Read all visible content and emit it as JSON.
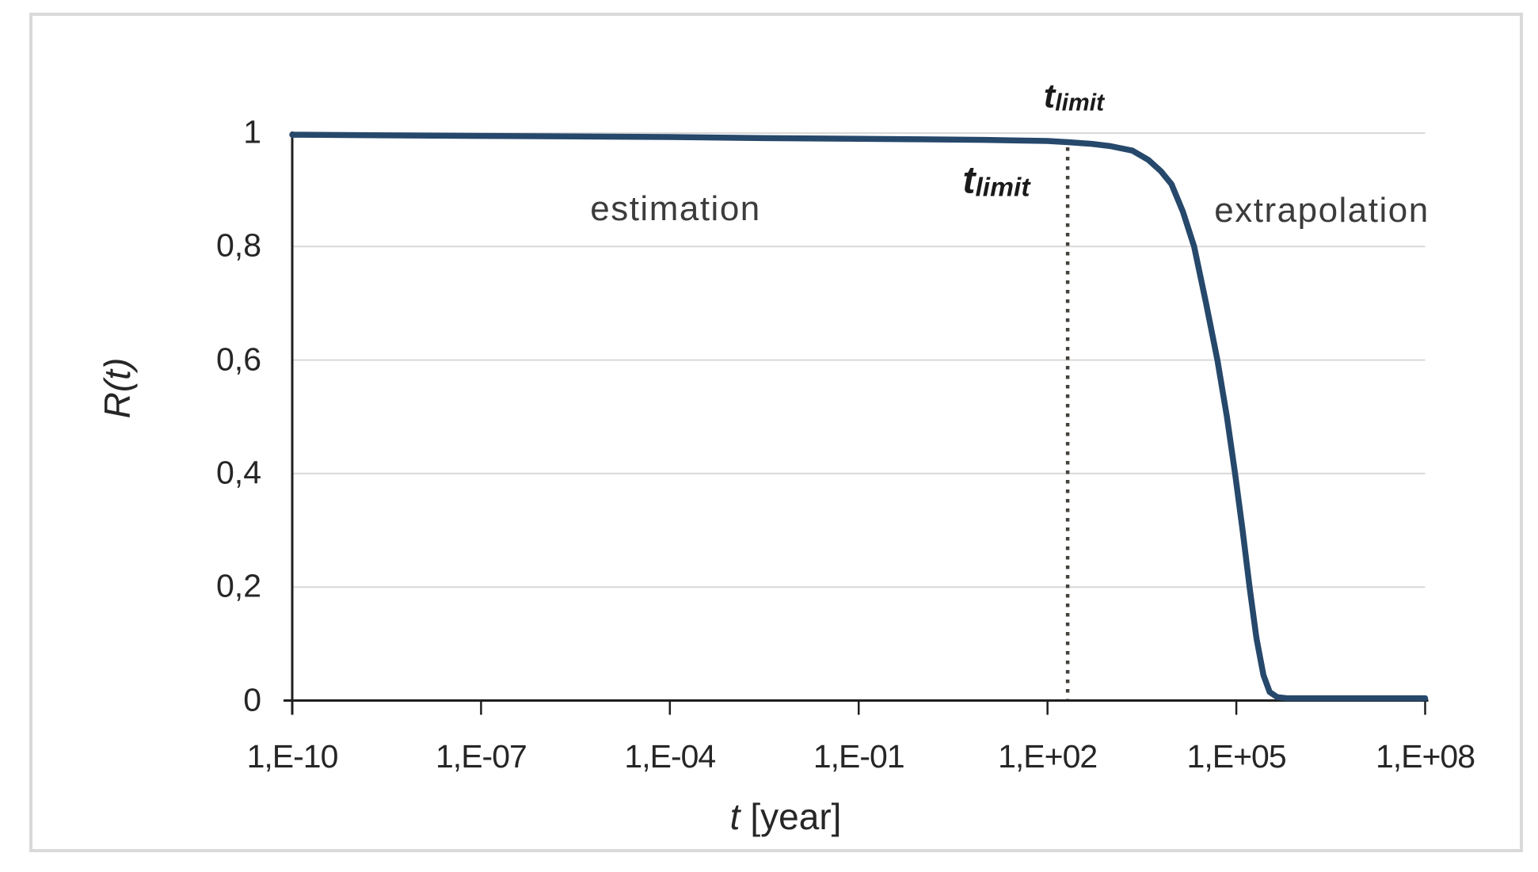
{
  "figure": {
    "background": "#ffffff",
    "border_color": "#d9d9d9"
  },
  "chart_data": {
    "type": "line",
    "title": "",
    "xlabel_symbol": "t",
    "xlabel_unit": "[year]",
    "ylabel": "R(t)",
    "x_scale": "log10",
    "xlim_log": [
      -10,
      8
    ],
    "ylim": [
      0,
      1
    ],
    "grid": "horizontal",
    "legend": "none",
    "x_ticks": [
      {
        "label": "1,E-10",
        "exp": -10
      },
      {
        "label": "1,E-07",
        "exp": -7
      },
      {
        "label": "1,E-04",
        "exp": -4
      },
      {
        "label": "1,E-01",
        "exp": -1
      },
      {
        "label": "1,E+02",
        "exp": 2
      },
      {
        "label": "1,E+05",
        "exp": 5
      },
      {
        "label": "1,E+08",
        "exp": 8
      }
    ],
    "y_ticks": [
      {
        "label": "1",
        "value": 1
      },
      {
        "label": "0,8",
        "value": 0.8
      },
      {
        "label": "0,6",
        "value": 0.6
      },
      {
        "label": "0,4",
        "value": 0.4
      },
      {
        "label": "0,2",
        "value": 0.2
      },
      {
        "label": "0",
        "value": 0
      }
    ],
    "series": [
      {
        "name": "R(t)",
        "color": "#26486B",
        "points_log10t_R": [
          [
            -10,
            0.997
          ],
          [
            -8.5,
            0.996
          ],
          [
            -7,
            0.995
          ],
          [
            -5.5,
            0.994
          ],
          [
            -4,
            0.993
          ],
          [
            -2.5,
            0.991
          ],
          [
            -1,
            0.99
          ],
          [
            0,
            0.989
          ],
          [
            1,
            0.988
          ],
          [
            2,
            0.986
          ],
          [
            2.32,
            0.984
          ],
          [
            2.7,
            0.981
          ],
          [
            3.0,
            0.977
          ],
          [
            3.35,
            0.969
          ],
          [
            3.6,
            0.953
          ],
          [
            3.8,
            0.933
          ],
          [
            3.97,
            0.91
          ],
          [
            4.15,
            0.862
          ],
          [
            4.33,
            0.8
          ],
          [
            4.52,
            0.7
          ],
          [
            4.7,
            0.6
          ],
          [
            4.85,
            0.5
          ],
          [
            4.98,
            0.4
          ],
          [
            5.1,
            0.3
          ],
          [
            5.21,
            0.2
          ],
          [
            5.32,
            0.11
          ],
          [
            5.43,
            0.045
          ],
          [
            5.53,
            0.015
          ],
          [
            5.65,
            0.006
          ],
          [
            5.8,
            0.004
          ],
          [
            8.0,
            0.004
          ]
        ]
      }
    ],
    "vline": {
      "x_log": 2.32,
      "approx_t_years": 210,
      "style": "dotted",
      "color": "#45413C",
      "label_symbol": "t",
      "label_subscript": "limit"
    },
    "annotations": {
      "estimation": "estimation",
      "extrapolation": "extrapolation"
    },
    "colors": {
      "gridline": "#D9D9D9",
      "axis": "#1F1F1F",
      "tick_text": "#262626",
      "annotation_text": "#3C3C3C",
      "frame": "#D9D9D9"
    }
  }
}
